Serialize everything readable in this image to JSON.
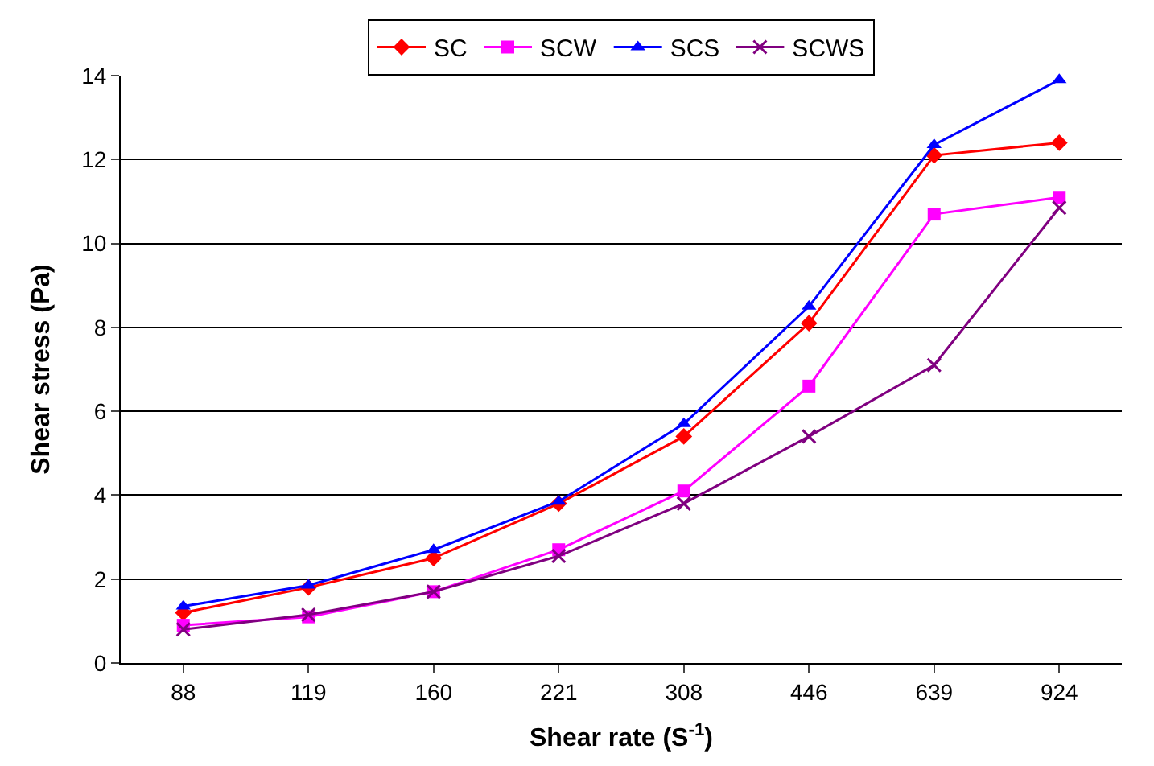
{
  "chart_data": {
    "type": "line",
    "xlabel": "Shear rate (S$^{-1}$)",
    "ylabel": "Shear stress (Pa)",
    "categories": [
      "88",
      "119",
      "160",
      "221",
      "308",
      "446",
      "639",
      "924"
    ],
    "series": [
      {
        "name": "SC",
        "color": "#ff0000",
        "marker": "diamond",
        "values": [
          1.2,
          1.8,
          2.5,
          3.8,
          5.4,
          8.1,
          12.1,
          12.4
        ]
      },
      {
        "name": "SCW",
        "color": "#ff00ff",
        "marker": "square",
        "values": [
          0.9,
          1.1,
          1.7,
          2.7,
          4.1,
          6.6,
          10.7,
          11.1
        ]
      },
      {
        "name": "SCS",
        "color": "#0000ff",
        "marker": "triangle",
        "values": [
          1.35,
          1.85,
          2.7,
          3.85,
          5.7,
          8.5,
          12.35,
          13.9
        ]
      },
      {
        "name": "SCWS",
        "color": "#800080",
        "marker": "cross",
        "values": [
          0.8,
          1.15,
          1.7,
          2.55,
          3.8,
          5.4,
          7.1,
          10.85
        ]
      }
    ],
    "ylim": [
      0,
      14
    ],
    "yticks": [
      0,
      2,
      4,
      6,
      8,
      10,
      12,
      14
    ],
    "grid": "y",
    "legend": "top",
    "line_style": "solid"
  }
}
